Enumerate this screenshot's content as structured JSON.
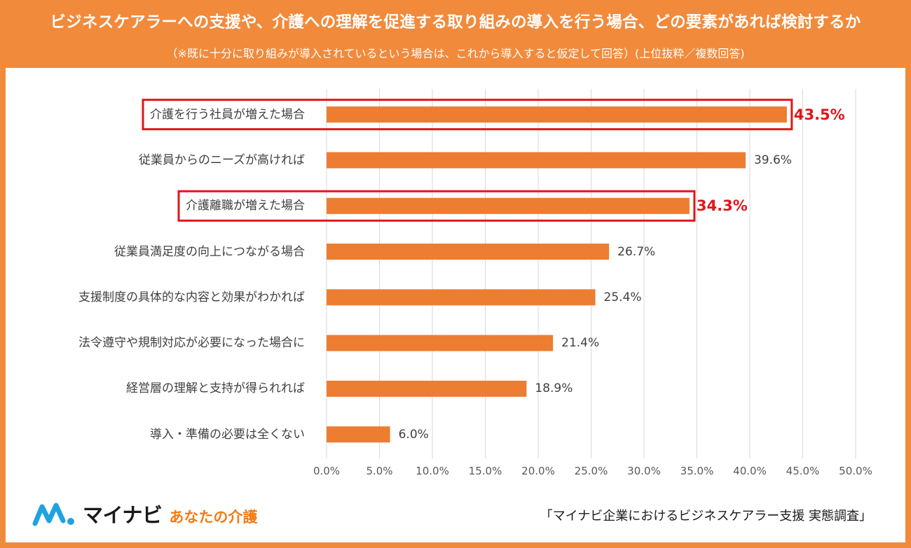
{
  "header": {
    "title": "ビジネスケアラーへの支援や、介護への理解を促進する取り組みの導入を行う場合、どの要素があれば検討するか",
    "subtitle": "（※既に十分に取り組みが導入されているという場合は、これから導入すると仮定して回答）(上位抜粋／複数回答)"
  },
  "chart_data": {
    "type": "bar",
    "orientation": "horizontal",
    "categories": [
      "介護を行う社員が増えた場合",
      "従業員からのニーズが高ければ",
      "介護離職が増えた場合",
      "従業員満足度の向上につながる場合",
      "支援制度の具体的な内容と効果がわかれば",
      "法令遵守や規制対応が必要になった場合に",
      "経営層の理解と支持が得られれば",
      "導入・準備の必要は全くない"
    ],
    "values": [
      43.5,
      39.6,
      34.3,
      26.7,
      25.4,
      21.4,
      18.9,
      6.0
    ],
    "value_labels": [
      "43.5%",
      "39.6%",
      "34.3%",
      "26.7%",
      "25.4%",
      "21.4%",
      "18.9%",
      "6.0%"
    ],
    "highlighted": [
      true,
      false,
      true,
      false,
      false,
      false,
      false,
      false
    ],
    "xlim": [
      0,
      50
    ],
    "ticks": [
      "0.0%",
      "5.0%",
      "10.0%",
      "15.0%",
      "20.0%",
      "25.0%",
      "30.0%",
      "35.0%",
      "40.0%",
      "45.0%",
      "50.0%"
    ],
    "grid": true,
    "bar_color": "#ed7d31",
    "highlight_color": "#e0161b",
    "grid_color": "#d9d9d9"
  },
  "footer": {
    "logo_main": "マイナビ",
    "logo_sub": "あなたの介護",
    "logo_icon": "mynavi-logo-icon",
    "source": "「マイナビ企業におけるビジネスケアラー支援 実態調査」"
  }
}
